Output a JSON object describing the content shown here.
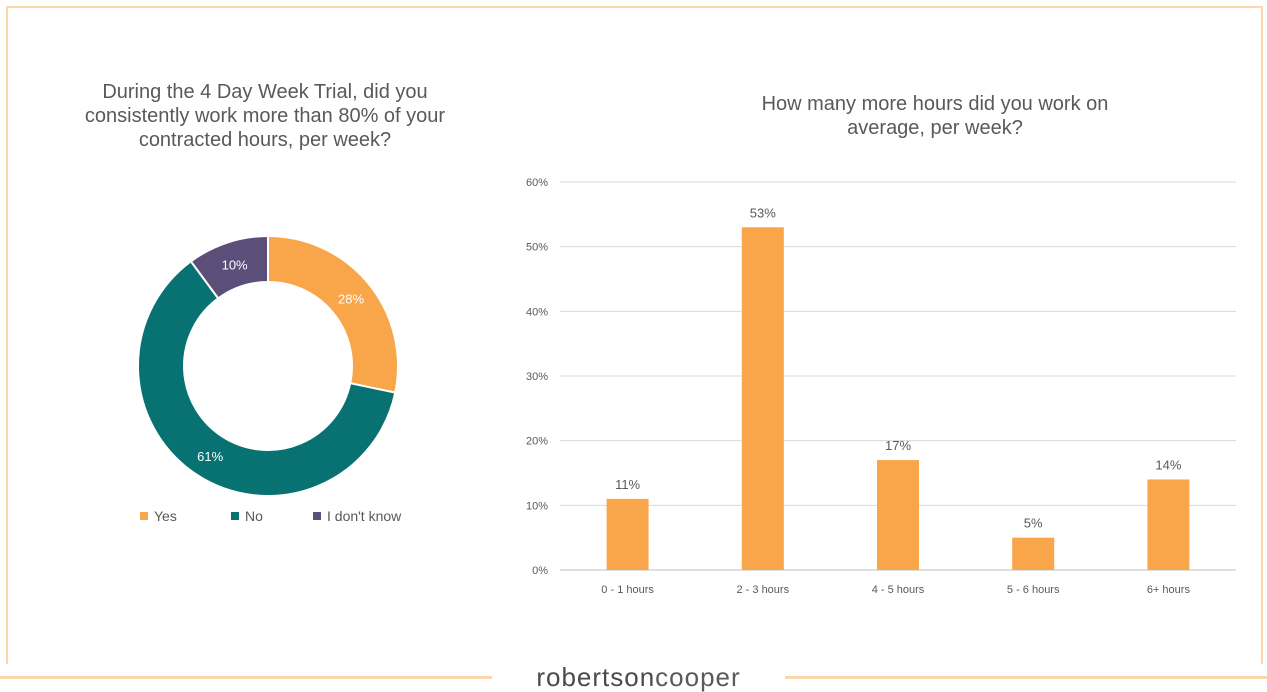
{
  "brand": {
    "part1": "robertson",
    "part2": "cooper"
  },
  "colors": {
    "yes": "#f9a64a",
    "no": "#087172",
    "dont_know": "#5b4f7a",
    "bar": "#f9a64a",
    "grid": "#d9d9d9",
    "frame": "#fcd7a9"
  },
  "chart_data": [
    {
      "type": "pie",
      "title": "During the 4 Day Week Trial, did you\nconsistently work more than 80% of your\ncontracted hours, per week?",
      "donut": true,
      "categories": [
        "Yes",
        "No",
        "I don't know"
      ],
      "values": [
        28,
        61,
        10
      ],
      "data_labels": [
        "28%",
        "61%",
        "10%"
      ],
      "legend_position": "bottom"
    },
    {
      "type": "bar",
      "title": "How many more hours did you work on\naverage, per week?",
      "categories": [
        "0 - 1 hours",
        "2 - 3 hours",
        "4 - 5 hours",
        "5 - 6 hours",
        "6+ hours"
      ],
      "values": [
        11,
        53,
        17,
        5,
        14
      ],
      "data_labels": [
        "11%",
        "53%",
        "17%",
        "5%",
        "14%"
      ],
      "ylim": [
        0,
        60
      ],
      "yticks": [
        "0%",
        "10%",
        "20%",
        "30%",
        "40%",
        "50%",
        "60%"
      ],
      "grid": true,
      "xlabel": "",
      "ylabel": ""
    }
  ]
}
